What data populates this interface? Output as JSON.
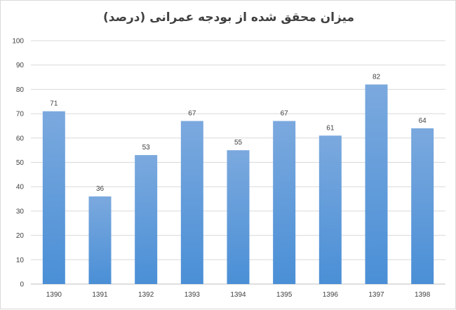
{
  "chart_data": {
    "type": "bar",
    "title": "میزان محقق شده از بودجه عمرانی (درصد)",
    "categories": [
      "1390",
      "1391",
      "1392",
      "1393",
      "1394",
      "1395",
      "1396",
      "1397",
      "1398"
    ],
    "values": [
      71,
      36,
      53,
      67,
      55,
      67,
      61,
      82,
      64
    ],
    "ylim": [
      0,
      100
    ],
    "yticks": [
      0,
      10,
      20,
      30,
      40,
      50,
      60,
      70,
      80,
      90,
      100
    ],
    "xlabel": "",
    "ylabel": "",
    "grid": true,
    "legend": "none",
    "show_data_labels": true,
    "colors": {
      "bar_top": "#7ba9de",
      "bar_bottom": "#4a8fd6",
      "grid": "#d9d9d9",
      "axis": "#bfbfbf",
      "text": "#404040"
    }
  }
}
